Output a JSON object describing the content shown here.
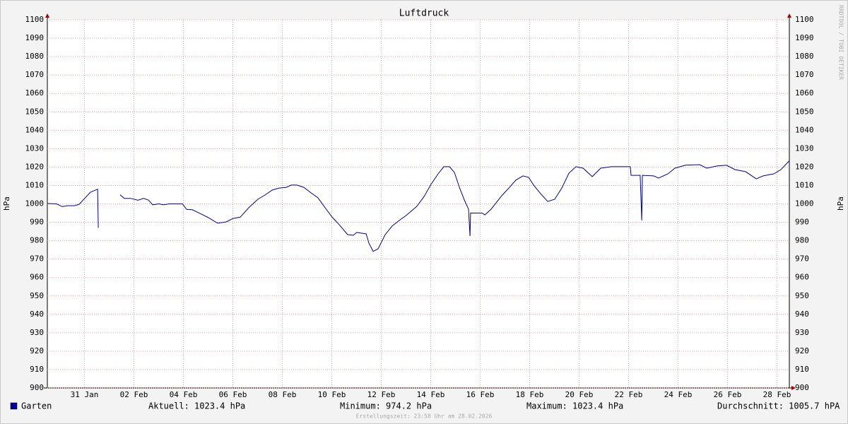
{
  "chart_data": {
    "type": "line",
    "title": "Luftdruck",
    "ylabel": "hPa",
    "watermark": "RRDTOOL / TOBI OETIKER",
    "xlim": [
      0,
      30
    ],
    "ylim": [
      900,
      1100
    ],
    "grid": true,
    "yticks": [
      900,
      910,
      920,
      930,
      940,
      950,
      960,
      970,
      980,
      990,
      1000,
      1010,
      1020,
      1030,
      1040,
      1050,
      1060,
      1070,
      1080,
      1090,
      1100
    ],
    "xticks": [
      {
        "value": 1.5,
        "label": "31 Jan"
      },
      {
        "value": 3.5,
        "label": "02 Feb"
      },
      {
        "value": 5.5,
        "label": "04 Feb"
      },
      {
        "value": 7.5,
        "label": "06 Feb"
      },
      {
        "value": 9.5,
        "label": "08 Feb"
      },
      {
        "value": 11.5,
        "label": "10 Feb"
      },
      {
        "value": 13.5,
        "label": "12 Feb"
      },
      {
        "value": 15.5,
        "label": "14 Feb"
      },
      {
        "value": 17.5,
        "label": "16 Feb"
      },
      {
        "value": 19.5,
        "label": "18 Feb"
      },
      {
        "value": 21.5,
        "label": "20 Feb"
      },
      {
        "value": 23.5,
        "label": "22 Feb"
      },
      {
        "value": 25.5,
        "label": "24 Feb"
      },
      {
        "value": 27.5,
        "label": "26 Feb"
      },
      {
        "value": 29.5,
        "label": "28 Feb"
      }
    ],
    "x": [
      0,
      0.37,
      0.6,
      0.8,
      1.09,
      1.29,
      1.51,
      1.74,
      2.03,
      2.06,
      2.5,
      2.94,
      3.11,
      3.37,
      3.66,
      3.89,
      4.09,
      4.26,
      4.51,
      4.69,
      4.94,
      5.46,
      5.63,
      5.86,
      6.23,
      6.51,
      6.89,
      7.23,
      7.51,
      7.8,
      8.14,
      8.51,
      8.8,
      9.09,
      9.37,
      9.66,
      9.86,
      10.09,
      10.37,
      10.66,
      10.94,
      11.23,
      11.51,
      11.8,
      12.14,
      12.37,
      12.51,
      12.89,
      13.0,
      13.17,
      13.37,
      13.66,
      13.94,
      14.23,
      14.51,
      14.94,
      15.23,
      15.51,
      15.8,
      16.03,
      16.26,
      16.46,
      16.66,
      16.86,
      17.03,
      17.09,
      17.11,
      17.57,
      17.69,
      17.94,
      18.37,
      18.66,
      18.94,
      19.23,
      19.46,
      19.66,
      19.94,
      20.23,
      20.51,
      20.8,
      21.09,
      21.37,
      21.66,
      22.03,
      22.37,
      22.8,
      23.57,
      23.6,
      23.97,
      24.03,
      24.06,
      24.51,
      24.71,
      25.09,
      25.37,
      25.8,
      26.37,
      26.66,
      27.09,
      27.46,
      27.8,
      28.23,
      28.66,
      28.94,
      29.37,
      29.66,
      30
    ],
    "series": [
      {
        "name": "Garten",
        "color": "#00009c",
        "values": [
          1000.2,
          1000,
          998.5,
          999,
          999,
          999.8,
          1003,
          1006.3,
          1008,
          987,
          null,
          1005,
          1003,
          1003,
          1002,
          1003,
          1002,
          999.5,
          1000,
          999.5,
          1000,
          1000,
          997,
          996.8,
          994.4,
          992.5,
          989.5,
          990.2,
          992.1,
          992.8,
          997.9,
          1002.5,
          1004.8,
          1007.5,
          1008.6,
          1009,
          1010.2,
          1010.2,
          1009,
          1006,
          1003.3,
          997.9,
          992.9,
          988.7,
          983.3,
          982.9,
          984.5,
          983.7,
          978.7,
          974.2,
          975.6,
          983.3,
          988,
          991,
          993.7,
          998.7,
          1004,
          1010.6,
          1016.3,
          1020.2,
          1020.2,
          1017,
          1009,
          1002.1,
          997.1,
          982.5,
          995,
          995,
          994,
          997.1,
          1004.4,
          1008.6,
          1012.9,
          1015.2,
          1014.4,
          1010.2,
          1005.6,
          1001.3,
          1002.5,
          1008.6,
          1016.7,
          1020.2,
          1019.4,
          1014.8,
          1019.4,
          1020.2,
          1020.2,
          1015.5,
          1015.5,
          991,
          1015.5,
          1015.2,
          1014,
          1016.3,
          1019.4,
          1021,
          1021.3,
          1019.4,
          1020.6,
          1021,
          1018.6,
          1017.5,
          1013.6,
          1015.2,
          1016.3,
          1018.6,
          1023.4
        ]
      }
    ],
    "legend_stats": [
      "Aktuell: 1023.4 hPa",
      "Minimum: 974.2 hPa",
      "Maximum: 1023.4 hPa",
      "Durchschnitt: 1005.7 hPA"
    ],
    "footnote": "Erstellungszeit: 23:58 Uhr am 28.02.2026"
  }
}
